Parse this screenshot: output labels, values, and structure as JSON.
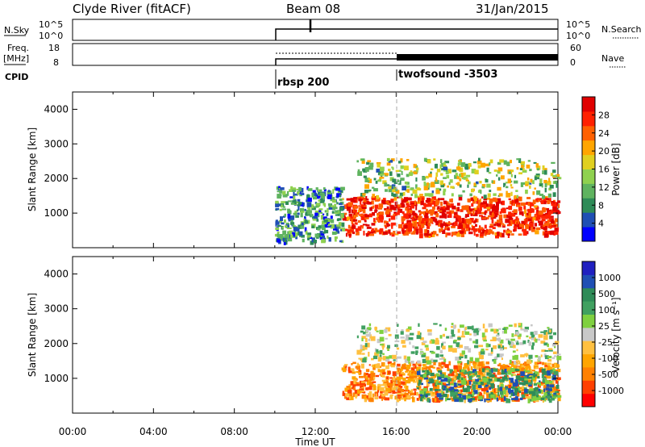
{
  "header": {
    "station": "Clyde River (fitACF)",
    "beam": "Beam 08",
    "date": "31/Jan/2015"
  },
  "status_panels": {
    "nsky_label": "N.Sky",
    "freq_label_top": "Freq.",
    "freq_label_bottom": "[MHz]",
    "cpid_label": "CPID",
    "nsearch_label": "N.Search",
    "nave_label": "Nave",
    "noise_ticks": [
      "10^5",
      "10^0"
    ],
    "freq_ticks": [
      "18",
      "8"
    ],
    "nave_ticks": [
      "60",
      "0"
    ],
    "cpid_segments": [
      {
        "label": "rbsp 200",
        "start_hour": 10.0,
        "end_hour": 16.0
      },
      {
        "label": "twofsound -3503",
        "start_hour": 16.0,
        "end_hour": 24.0
      }
    ]
  },
  "colors": {
    "power_scale": [
      "#0000ff",
      "#1f4fb4",
      "#2e8b57",
      "#5fb35f",
      "#8fd14f",
      "#e0d020",
      "#ffa500",
      "#ff6000",
      "#ff2000",
      "#e00000"
    ],
    "velocity_scale": [
      "#ff0000",
      "#ff4000",
      "#ff8000",
      "#ffa500",
      "#ffc040",
      "#c8c8c8",
      "#7fd040",
      "#40a060",
      "#2e8b57",
      "#1f4fb4",
      "#2020c0"
    ]
  },
  "chart_data": [
    {
      "type": "heatmap",
      "name": "power",
      "xlabel": "",
      "ylabel": "Slant Range [km]",
      "x_ticks": [
        "00:00",
        "04:00",
        "08:00",
        "12:00",
        "16:00",
        "20:00",
        "00:00"
      ],
      "xlim_hours": [
        0,
        24
      ],
      "ylim": [
        0,
        4500
      ],
      "y_ticks": [
        1000,
        2000,
        3000,
        4000
      ],
      "colorbar": {
        "label": "Power [dB]",
        "ticks": [
          "28",
          "24",
          "20",
          "16",
          "12",
          "8",
          "4"
        ],
        "range": [
          0,
          32
        ]
      },
      "regions": [
        {
          "desc": "main",
          "t": [
            13.3,
            24.0
          ],
          "r": [
            400,
            1500
          ],
          "value_db": 28
        },
        {
          "desc": "upper",
          "t": [
            14.0,
            24.0
          ],
          "r": [
            1500,
            2600
          ],
          "value_db": 14
        },
        {
          "desc": "early",
          "t": [
            10.0,
            13.3
          ],
          "r": [
            200,
            1800
          ],
          "value_db": 8
        }
      ]
    },
    {
      "type": "heatmap",
      "name": "velocity",
      "xlabel": "Time UT",
      "ylabel": "Slant Range [km]",
      "x_ticks": [
        "00:00",
        "04:00",
        "08:00",
        "12:00",
        "16:00",
        "20:00",
        "00:00"
      ],
      "xlim_hours": [
        0,
        24
      ],
      "ylim": [
        0,
        4500
      ],
      "y_ticks": [
        1000,
        2000,
        3000,
        4000
      ],
      "colorbar": {
        "label": "Velocity [m s⁻¹]",
        "ticks": [
          "1000",
          "500",
          "100",
          "25",
          "-25",
          "-100",
          "-500",
          "-1000"
        ],
        "range": [
          -1000,
          1000
        ]
      },
      "regions": [
        {
          "desc": "main",
          "t": [
            13.3,
            24.0
          ],
          "r": [
            400,
            1500
          ],
          "value_ms": -150
        },
        {
          "desc": "late-main",
          "t": [
            17.0,
            24.0
          ],
          "r": [
            400,
            1300
          ],
          "value_ms": 150
        },
        {
          "desc": "upper",
          "t": [
            14.0,
            24.0
          ],
          "r": [
            1500,
            2600
          ],
          "value_ms": 50
        }
      ]
    }
  ]
}
